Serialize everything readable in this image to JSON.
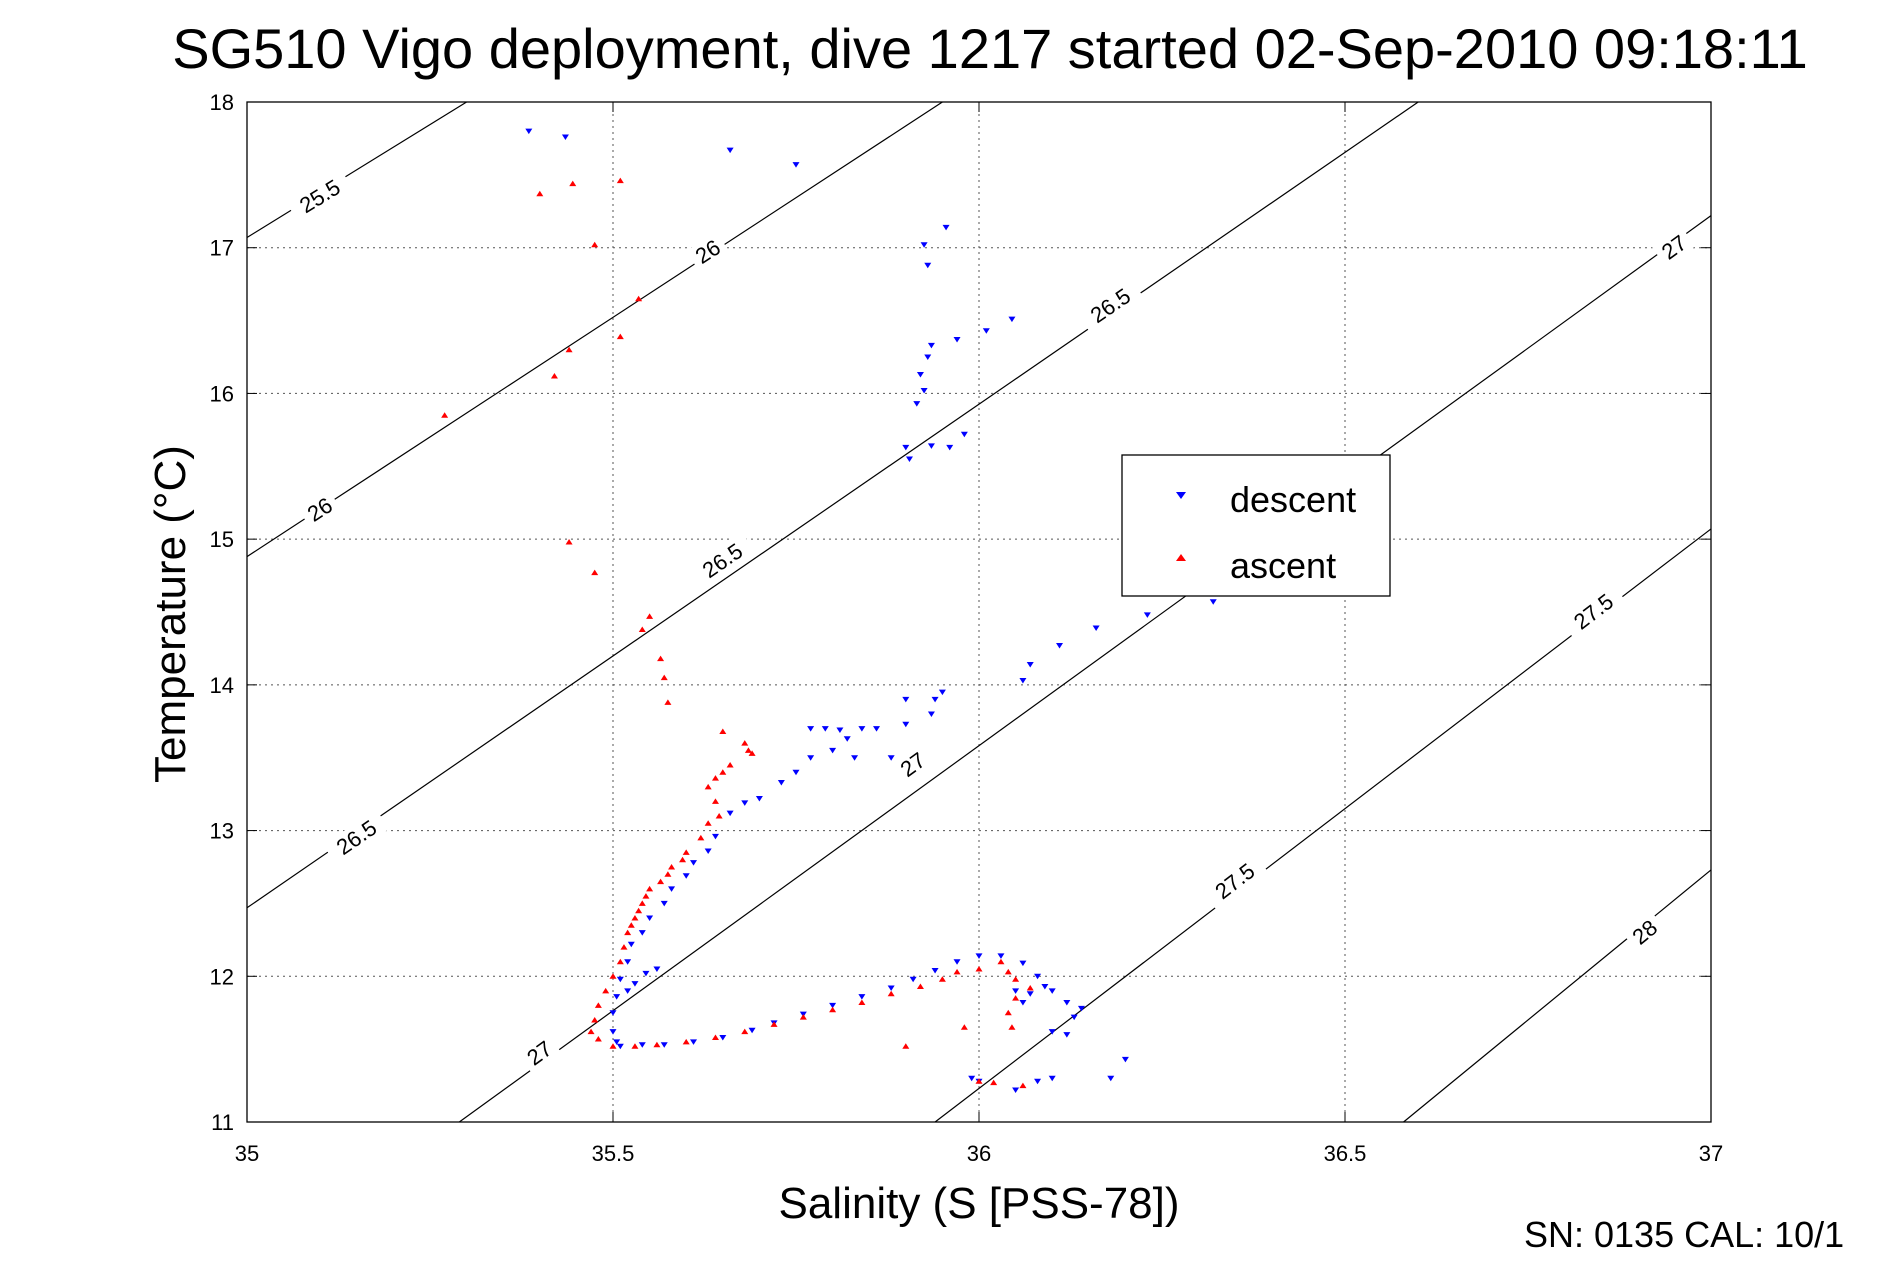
{
  "chart_data": {
    "type": "scatter",
    "title": "SG510 Vigo deployment, dive 1217 started 02-Sep-2010 09:18:11",
    "xlabel": "Salinity (S [PSS-78])",
    "ylabel": "Temperature (°C)",
    "xlim": [
      35,
      37
    ],
    "ylim": [
      11,
      18
    ],
    "xticks": [
      35,
      35.5,
      36,
      36.5,
      37
    ],
    "xtick_labels": [
      "35",
      "35.5",
      "36",
      "36.5",
      "37"
    ],
    "yticks": [
      11,
      12,
      13,
      14,
      15,
      16,
      17,
      18
    ],
    "ytick_labels": [
      "11",
      "12",
      "13",
      "14",
      "15",
      "16",
      "17",
      "18"
    ],
    "grid": true,
    "legend_position": "right-center",
    "footer": "SN: 0135  CAL: 10/1",
    "contours": [
      {
        "level": "25.5",
        "points": [
          [
            35,
            17.07
          ],
          [
            35.3,
            18.0
          ]
        ],
        "labels": [
          {
            "text": "25.5",
            "x": 35.1,
            "y": 17.35
          }
        ]
      },
      {
        "level": "26",
        "points": [
          [
            35,
            14.88
          ],
          [
            35.95,
            18.0
          ]
        ],
        "labels": [
          {
            "text": "26",
            "x": 35.1,
            "y": 15.2
          },
          {
            "text": "26",
            "x": 35.63,
            "y": 16.97
          }
        ]
      },
      {
        "level": "26.5",
        "points": [
          [
            35,
            12.47
          ],
          [
            36.6,
            18.0
          ]
        ],
        "labels": [
          {
            "text": "26.5",
            "x": 35.15,
            "y": 12.95
          },
          {
            "text": "26.5",
            "x": 35.65,
            "y": 14.85
          },
          {
            "text": "26.5",
            "x": 36.18,
            "y": 16.6
          }
        ]
      },
      {
        "level": "27",
        "points": [
          [
            35.29,
            11.0
          ],
          [
            37,
            17.22
          ]
        ],
        "labels": [
          {
            "text": "27",
            "x": 35.4,
            "y": 11.47
          },
          {
            "text": "27",
            "x": 35.91,
            "y": 13.45
          },
          {
            "text": "27",
            "x": 36.95,
            "y": 17.0
          }
        ]
      },
      {
        "level": "27.5",
        "points": [
          [
            35.94,
            11.0
          ],
          [
            37,
            15.07
          ]
        ],
        "labels": [
          {
            "text": "27.5",
            "x": 36.35,
            "y": 12.65
          },
          {
            "text": "27.5",
            "x": 36.84,
            "y": 14.5
          }
        ]
      },
      {
        "level": "28",
        "points": [
          [
            36.58,
            11.0
          ],
          [
            37,
            12.73
          ]
        ],
        "labels": [
          {
            "text": "28",
            "x": 36.91,
            "y": 12.3
          }
        ]
      }
    ],
    "series": [
      {
        "name": "descent",
        "marker": "triangle-down",
        "color": "#0000ff",
        "points": [
          [
            35.385,
            17.8
          ],
          [
            35.435,
            17.76
          ],
          [
            35.66,
            17.67
          ],
          [
            35.75,
            17.57
          ],
          [
            35.955,
            17.14
          ],
          [
            35.925,
            17.02
          ],
          [
            35.93,
            16.88
          ],
          [
            36.045,
            16.51
          ],
          [
            36.01,
            16.43
          ],
          [
            35.97,
            16.37
          ],
          [
            35.935,
            16.33
          ],
          [
            35.93,
            16.25
          ],
          [
            35.92,
            16.13
          ],
          [
            35.925,
            16.02
          ],
          [
            35.915,
            15.93
          ],
          [
            35.9,
            15.63
          ],
          [
            35.905,
            15.55
          ],
          [
            35.935,
            15.64
          ],
          [
            35.96,
            15.63
          ],
          [
            35.98,
            15.72
          ],
          [
            36.32,
            14.57
          ],
          [
            36.23,
            14.48
          ],
          [
            36.16,
            14.39
          ],
          [
            36.11,
            14.27
          ],
          [
            36.07,
            14.14
          ],
          [
            36.06,
            14.03
          ],
          [
            35.95,
            13.95
          ],
          [
            35.94,
            13.9
          ],
          [
            35.9,
            13.9
          ],
          [
            35.935,
            13.8
          ],
          [
            35.9,
            13.73
          ],
          [
            35.86,
            13.7
          ],
          [
            35.84,
            13.7
          ],
          [
            35.81,
            13.69
          ],
          [
            35.79,
            13.7
          ],
          [
            35.77,
            13.7
          ],
          [
            35.88,
            13.5
          ],
          [
            35.83,
            13.5
          ],
          [
            35.82,
            13.63
          ],
          [
            35.8,
            13.55
          ],
          [
            35.77,
            13.5
          ],
          [
            35.75,
            13.4
          ],
          [
            35.73,
            13.33
          ],
          [
            35.7,
            13.22
          ],
          [
            35.68,
            13.19
          ],
          [
            35.66,
            13.12
          ],
          [
            35.64,
            12.96
          ],
          [
            35.63,
            12.86
          ],
          [
            35.61,
            12.78
          ],
          [
            35.6,
            12.69
          ],
          [
            35.58,
            12.6
          ],
          [
            35.57,
            12.5
          ],
          [
            35.55,
            12.4
          ],
          [
            35.54,
            12.3
          ],
          [
            35.525,
            12.22
          ],
          [
            35.52,
            12.1
          ],
          [
            35.51,
            11.98
          ],
          [
            35.505,
            11.86
          ],
          [
            35.5,
            11.75
          ],
          [
            35.5,
            11.62
          ],
          [
            35.505,
            11.55
          ],
          [
            35.51,
            11.52
          ],
          [
            35.54,
            11.53
          ],
          [
            35.57,
            11.53
          ],
          [
            35.61,
            11.55
          ],
          [
            35.65,
            11.58
          ],
          [
            35.69,
            11.63
          ],
          [
            35.72,
            11.68
          ],
          [
            35.76,
            11.74
          ],
          [
            35.8,
            11.8
          ],
          [
            35.84,
            11.86
          ],
          [
            35.88,
            11.92
          ],
          [
            35.91,
            11.98
          ],
          [
            35.94,
            12.04
          ],
          [
            35.97,
            12.1
          ],
          [
            36.0,
            12.14
          ],
          [
            36.03,
            12.14
          ],
          [
            36.06,
            12.09
          ],
          [
            36.08,
            12.0
          ],
          [
            36.1,
            11.9
          ],
          [
            36.12,
            11.82
          ],
          [
            36.13,
            11.72
          ],
          [
            36.12,
            11.6
          ],
          [
            36.1,
            11.62
          ],
          [
            36.07,
            11.88
          ],
          [
            36.09,
            11.93
          ],
          [
            36.06,
            11.82
          ],
          [
            36.05,
            11.9
          ],
          [
            36.1,
            11.3
          ],
          [
            36.08,
            11.28
          ],
          [
            36.05,
            11.22
          ],
          [
            36.0,
            11.28
          ],
          [
            35.99,
            11.3
          ],
          [
            36.18,
            11.3
          ],
          [
            36.2,
            11.43
          ],
          [
            36.14,
            11.78
          ],
          [
            35.52,
            11.9
          ],
          [
            35.53,
            11.95
          ],
          [
            35.56,
            12.05
          ],
          [
            35.545,
            12.02
          ]
        ]
      },
      {
        "name": "ascent",
        "marker": "triangle-up",
        "color": "#ff0000",
        "points": [
          [
            35.4,
            17.37
          ],
          [
            35.445,
            17.44
          ],
          [
            35.51,
            17.46
          ],
          [
            35.475,
            17.02
          ],
          [
            35.535,
            16.65
          ],
          [
            35.51,
            16.39
          ],
          [
            35.44,
            16.3
          ],
          [
            35.42,
            16.12
          ],
          [
            35.27,
            15.85
          ],
          [
            35.44,
            14.98
          ],
          [
            35.475,
            14.77
          ],
          [
            35.55,
            14.47
          ],
          [
            35.54,
            14.38
          ],
          [
            35.565,
            14.18
          ],
          [
            35.57,
            14.05
          ],
          [
            35.575,
            13.88
          ],
          [
            35.65,
            13.68
          ],
          [
            35.68,
            13.6
          ],
          [
            35.685,
            13.55
          ],
          [
            35.69,
            13.53
          ],
          [
            35.66,
            13.45
          ],
          [
            35.65,
            13.4
          ],
          [
            35.64,
            13.36
          ],
          [
            35.63,
            13.3
          ],
          [
            35.64,
            13.2
          ],
          [
            35.645,
            13.1
          ],
          [
            35.63,
            13.05
          ],
          [
            35.62,
            12.95
          ],
          [
            35.6,
            12.85
          ],
          [
            35.595,
            12.8
          ],
          [
            35.58,
            12.75
          ],
          [
            35.575,
            12.7
          ],
          [
            35.565,
            12.65
          ],
          [
            35.55,
            12.6
          ],
          [
            35.545,
            12.55
          ],
          [
            35.54,
            12.5
          ],
          [
            35.535,
            12.45
          ],
          [
            35.53,
            12.4
          ],
          [
            35.525,
            12.35
          ],
          [
            35.52,
            12.3
          ],
          [
            35.515,
            12.2
          ],
          [
            35.51,
            12.1
          ],
          [
            35.5,
            12.0
          ],
          [
            35.49,
            11.9
          ],
          [
            35.48,
            11.8
          ],
          [
            35.475,
            11.7
          ],
          [
            35.47,
            11.62
          ],
          [
            35.48,
            11.57
          ],
          [
            35.5,
            11.52
          ],
          [
            35.53,
            11.52
          ],
          [
            35.56,
            11.53
          ],
          [
            35.6,
            11.55
          ],
          [
            35.64,
            11.58
          ],
          [
            35.68,
            11.62
          ],
          [
            35.72,
            11.67
          ],
          [
            35.76,
            11.72
          ],
          [
            35.8,
            11.77
          ],
          [
            35.84,
            11.82
          ],
          [
            35.88,
            11.88
          ],
          [
            35.92,
            11.93
          ],
          [
            35.95,
            11.98
          ],
          [
            35.97,
            12.03
          ],
          [
            36.0,
            12.05
          ],
          [
            36.03,
            12.1
          ],
          [
            36.04,
            12.03
          ],
          [
            36.05,
            11.98
          ],
          [
            36.07,
            11.92
          ],
          [
            36.05,
            11.85
          ],
          [
            36.04,
            11.75
          ],
          [
            36.045,
            11.65
          ],
          [
            35.9,
            11.52
          ],
          [
            35.98,
            11.65
          ],
          [
            36.0,
            11.28
          ],
          [
            36.02,
            11.27
          ],
          [
            36.06,
            11.25
          ]
        ]
      }
    ]
  },
  "legend": {
    "items": [
      {
        "label": "descent",
        "marker": "triangle-down",
        "color": "#0000ff"
      },
      {
        "label": "ascent",
        "marker": "triangle-up",
        "color": "#ff0000"
      }
    ]
  }
}
